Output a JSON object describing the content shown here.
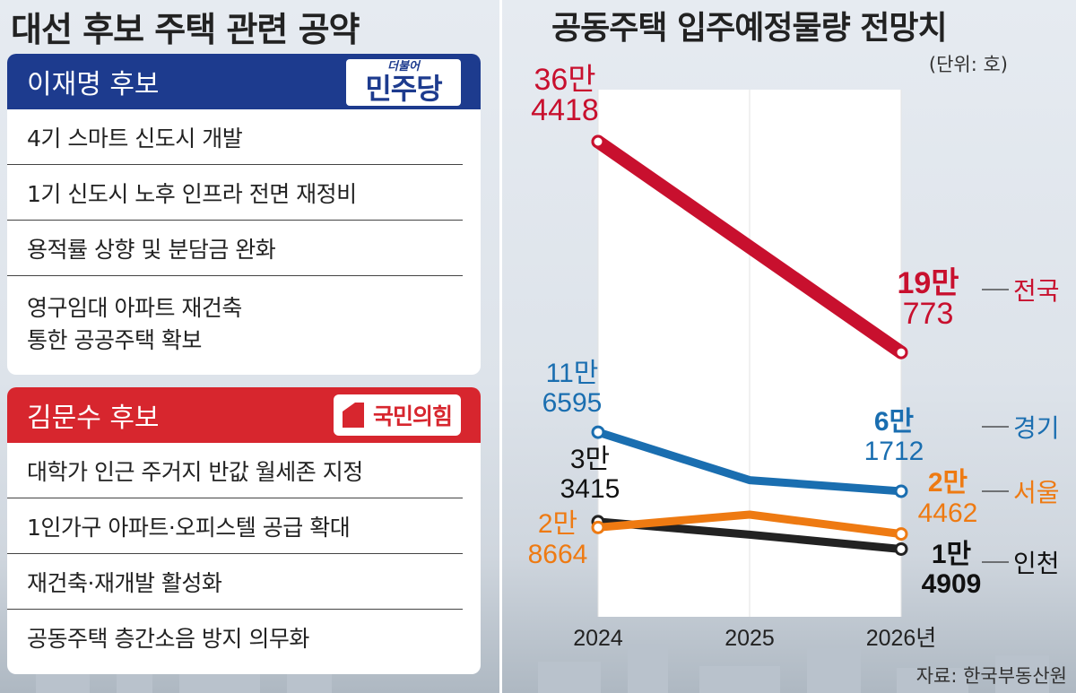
{
  "left_panel": {
    "title": "대선 후보 주택 관련 공약",
    "candidate1": {
      "name": "이재명 후보",
      "party_logo_small": "더불어",
      "party_logo_big": "민주당",
      "color": "#1d3b8e",
      "pledges": [
        "4기 스마트 신도시 개발",
        "1기 신도시 노후 인프라 전면 재정비",
        "용적률 상향 및 분담금 완화"
      ],
      "pledge4_line1": "영구임대 아파트 재건축",
      "pledge4_line2": "통한 공공주택 확보"
    },
    "candidate2": {
      "name": "김문수 후보",
      "party_logo": "국민의힘",
      "color": "#d7262e",
      "pledges": [
        "대학가 인근 주거지 반값 월세존 지정",
        "1인가구 아파트·오피스텔 공급 확대",
        "재건축·재개발 활성화",
        "공동주택 층간소음 방지 의무화"
      ]
    }
  },
  "chart_data": {
    "type": "line",
    "title": "공동주택 입주예정물량 전망치",
    "unit": "(단위: 호)",
    "source": "자료: 한국부동산원",
    "x": [
      "2024",
      "2025",
      "2026년"
    ],
    "ylim": [
      0,
      400000
    ],
    "grid": false,
    "series": [
      {
        "name": "전국",
        "values": [
          364418,
          null,
          190773
        ],
        "color": "#c8102e",
        "start_label": [
          "36만",
          "4418"
        ],
        "end_label": [
          "19만",
          "773"
        ]
      },
      {
        "name": "경기",
        "values": [
          116595,
          72000,
          61712
        ],
        "color": "#1a6eb0",
        "start_label": [
          "11만",
          "6595"
        ],
        "end_label": [
          "6만",
          "1712"
        ]
      },
      {
        "name": "서울",
        "values": [
          28664,
          40000,
          24462
        ],
        "color": "#ee7a12",
        "start_label": [
          "2만",
          "8664"
        ],
        "end_label": [
          "2만",
          "4462"
        ]
      },
      {
        "name": "인천",
        "values": [
          33415,
          24000,
          14909
        ],
        "color": "#222222",
        "start_label": [
          "3만",
          "3415"
        ],
        "end_label": [
          "1만",
          "4909"
        ]
      }
    ]
  }
}
